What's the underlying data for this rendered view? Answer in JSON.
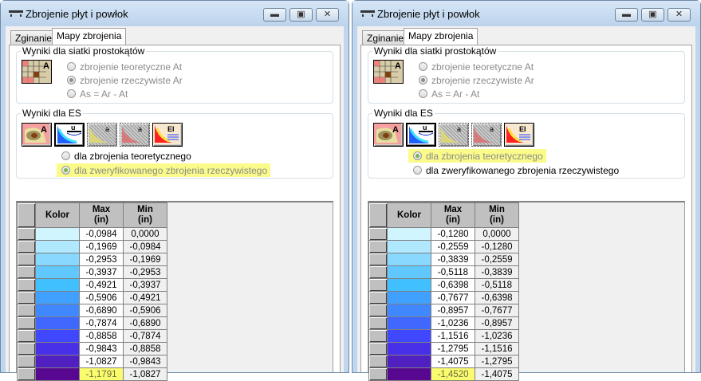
{
  "windows": [
    {
      "title": "Zbrojenie płyt i powłok",
      "tabs": [
        "Zginanie",
        "Mapy zbrojenia"
      ],
      "active_tab": 1,
      "group1": {
        "label": "Wyniki dla siatki prostokątów",
        "options": [
          "zbrojenie teoretyczne At",
          "zbrojenie rzeczywiste Ar",
          "As = Ar - At"
        ],
        "selected": 1
      },
      "group2": {
        "label": "Wyniki dla ES",
        "options": [
          "dla zbrojenia teoretycznego",
          "dla zweryfikowanego zbrojenia rzeczywistego"
        ],
        "selected": 1,
        "highlighted": 1
      },
      "table": {
        "headers": {
          "color": "Kolor",
          "max": "Max\n(in)",
          "min": "Min\n(in)"
        },
        "highlighted_max_row": 11,
        "rows": [
          {
            "color": "#d0f5ff",
            "max": "-0,0984",
            "min": "0,0000"
          },
          {
            "color": "#b0e8ff",
            "max": "-0,1969",
            "min": "-0,0984"
          },
          {
            "color": "#88d8ff",
            "max": "-0,2953",
            "min": "-0,1969"
          },
          {
            "color": "#60c8ff",
            "max": "-0,3937",
            "min": "-0,2953"
          },
          {
            "color": "#40c0ff",
            "max": "-0,4921",
            "min": "-0,3937"
          },
          {
            "color": "#40a0ff",
            "max": "-0,5906",
            "min": "-0,4921"
          },
          {
            "color": "#4088ff",
            "max": "-0,6890",
            "min": "-0,5906"
          },
          {
            "color": "#4068ff",
            "max": "-0,7874",
            "min": "-0,6890"
          },
          {
            "color": "#4048ff",
            "max": "-0,8858",
            "min": "-0,7874"
          },
          {
            "color": "#4830e8",
            "max": "-0,9843",
            "min": "-0,8858"
          },
          {
            "color": "#5020c0",
            "max": "-1,0827",
            "min": "-0,9843"
          },
          {
            "color": "#580890",
            "max": "-1,1791",
            "min": "-1,0827"
          }
        ]
      }
    },
    {
      "title": "Zbrojenie płyt i powłok",
      "tabs": [
        "Zginanie",
        "Mapy zbrojenia"
      ],
      "active_tab": 1,
      "group1": {
        "label": "Wyniki dla siatki prostokątów",
        "options": [
          "zbrojenie teoretyczne At",
          "zbrojenie rzeczywiste Ar",
          "As = Ar - At"
        ],
        "selected": 1
      },
      "group2": {
        "label": "Wyniki dla ES",
        "options": [
          "dla zbrojenia teoretycznego",
          "dla zweryfikowanego zbrojenia rzeczywistego"
        ],
        "selected": 0,
        "highlighted": 0
      },
      "table": {
        "headers": {
          "color": "Kolor",
          "max": "Max\n(in)",
          "min": "Min\n(in)"
        },
        "highlighted_max_row": 11,
        "rows": [
          {
            "color": "#d0f5ff",
            "max": "-0,1280",
            "min": "0,0000"
          },
          {
            "color": "#b0e8ff",
            "max": "-0,2559",
            "min": "-0,1280"
          },
          {
            "color": "#88d8ff",
            "max": "-0,3839",
            "min": "-0,2559"
          },
          {
            "color": "#60c8ff",
            "max": "-0,5118",
            "min": "-0,3839"
          },
          {
            "color": "#40c0ff",
            "max": "-0,6398",
            "min": "-0,5118"
          },
          {
            "color": "#40a0ff",
            "max": "-0,7677",
            "min": "-0,6398"
          },
          {
            "color": "#4088ff",
            "max": "-0,8957",
            "min": "-0,7677"
          },
          {
            "color": "#4068ff",
            "max": "-1,0236",
            "min": "-0,8957"
          },
          {
            "color": "#4048ff",
            "max": "-1,1516",
            "min": "-1,0236"
          },
          {
            "color": "#4830e8",
            "max": "-1,2795",
            "min": "-1,1516"
          },
          {
            "color": "#5020c0",
            "max": "-1,4075",
            "min": "-1,2795"
          },
          {
            "color": "#580890",
            "max": "-1,4520",
            "min": "-1,4075"
          }
        ]
      }
    }
  ],
  "icons": {
    "grid": "grid-map-A-icon",
    "es": [
      "map-A-icon",
      "deflection-u-icon",
      "crack-a-icon",
      "crack-a-alt-icon",
      "stiffness-EI-icon"
    ],
    "es_pressed": 1,
    "es_disabled": [
      2,
      3
    ]
  }
}
